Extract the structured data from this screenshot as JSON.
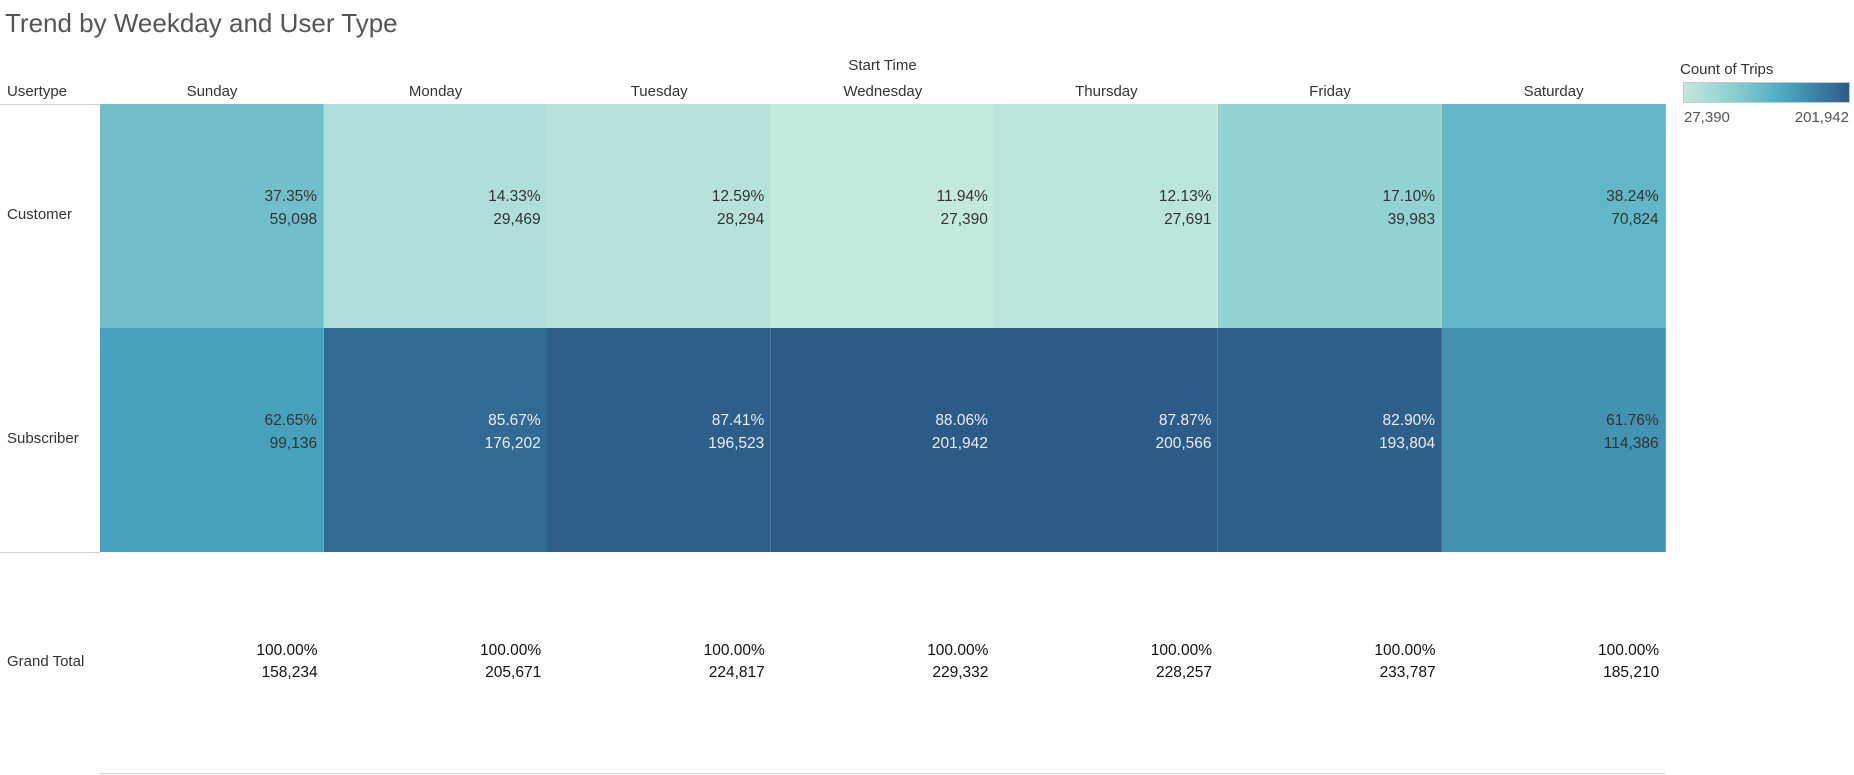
{
  "chart_data": {
    "type": "heatmap",
    "title": "Trend by Weekday and User Type",
    "column_group_label": "Start Time",
    "row_header": "Usertype",
    "columns": [
      "Sunday",
      "Monday",
      "Tuesday",
      "Wednesday",
      "Thursday",
      "Friday",
      "Saturday"
    ],
    "rows": [
      {
        "label": "Customer",
        "pct": [
          "37.35%",
          "14.33%",
          "12.59%",
          "11.94%",
          "12.13%",
          "17.10%",
          "38.24%"
        ],
        "counts": [
          59098,
          29469,
          28294,
          27390,
          27691,
          39983,
          70824
        ],
        "count_labels": [
          "59,098",
          "29,469",
          "28,294",
          "27,390",
          "27,691",
          "39,983",
          "70,824"
        ]
      },
      {
        "label": "Subscriber",
        "pct": [
          "62.65%",
          "85.67%",
          "87.41%",
          "88.06%",
          "87.87%",
          "82.90%",
          "61.76%"
        ],
        "counts": [
          99136,
          176202,
          196523,
          201942,
          200566,
          193804,
          114386
        ],
        "count_labels": [
          "99,136",
          "176,202",
          "196,523",
          "201,942",
          "200,566",
          "193,804",
          "114,386"
        ]
      }
    ],
    "grand_total": {
      "label": "Grand Total",
      "pct": [
        "100.00%",
        "100.00%",
        "100.00%",
        "100.00%",
        "100.00%",
        "100.00%",
        "100.00%"
      ],
      "count_labels": [
        "158,234",
        "205,671",
        "224,817",
        "229,332",
        "228,257",
        "233,787",
        "185,210"
      ]
    },
    "legend": {
      "title": "Count of Trips",
      "min": 27390,
      "max": 201942,
      "min_label": "27,390",
      "max_label": "201,942",
      "placement": "top-right"
    },
    "colors": {
      "low": "#c3e8dc",
      "mid1": "#8ccfd0",
      "mid2": "#4ba9c2",
      "high": "#2d5b88"
    }
  }
}
